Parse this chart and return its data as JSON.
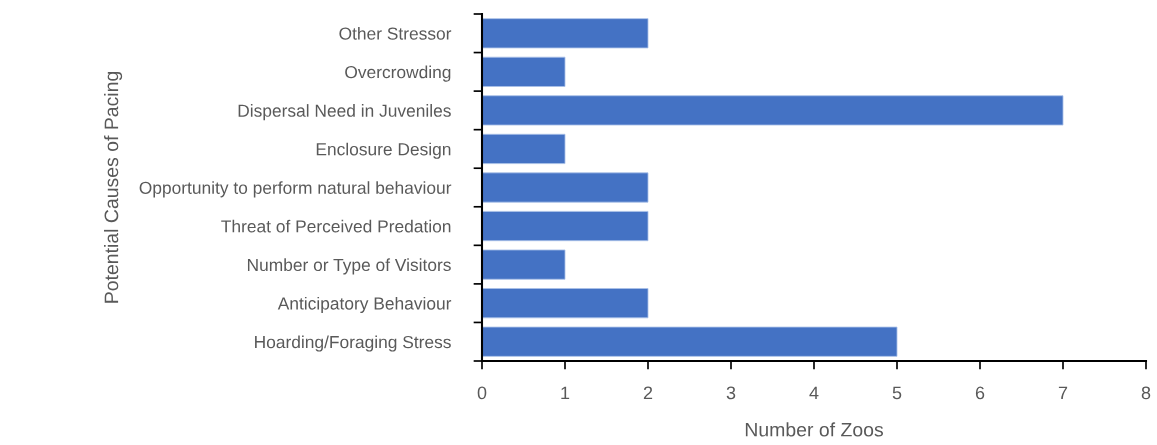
{
  "chart_data": {
    "type": "bar",
    "orientation": "horizontal",
    "categories": [
      "Other Stressor",
      "Overcrowding",
      "Dispersal Need in Juveniles",
      "Enclosure Design",
      "Opportunity to perform natural behaviour",
      "Threat of Perceived Predation",
      "Number or Type of Visitors",
      "Anticipatory Behaviour",
      "Hoarding/Foraging Stress"
    ],
    "values": [
      2,
      1,
      7,
      1,
      2,
      2,
      1,
      2,
      5
    ],
    "color": "#4472c4",
    "xlabel": "Number of Zoos",
    "ylabel": "Potential Causes of Pacing",
    "xlim": [
      0,
      8
    ],
    "xticks": [
      0,
      1,
      2,
      3,
      4,
      5,
      6,
      7,
      8
    ],
    "grid": false,
    "legend": false
  }
}
